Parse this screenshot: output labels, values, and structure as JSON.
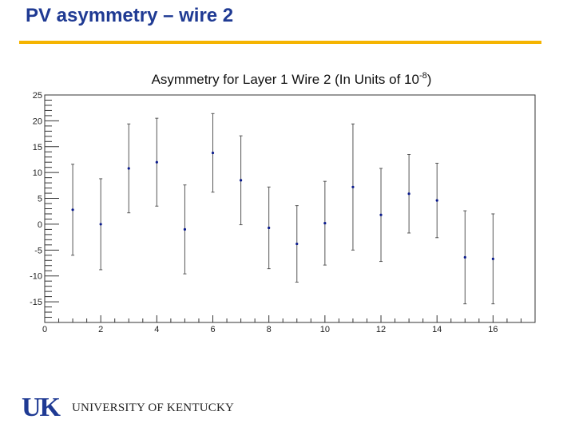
{
  "slide": {
    "title": "PV asymmetry – wire 2",
    "title_color": "#1f3a93",
    "rule_color": "#f5b400"
  },
  "footer": {
    "logo_text": "UK",
    "logo_color": "#1f3a93",
    "institution": "UNIVERSITY OF KENTUCKY"
  },
  "chart_data": {
    "type": "scatter",
    "title_main": "Asymmetry for Layer 1 Wire 2 (In Units of 10",
    "title_sup": "-8",
    "title_end": ")",
    "xlabel": "",
    "ylabel": "",
    "xlim": [
      0,
      17.5
    ],
    "ylim": [
      -19,
      25
    ],
    "x_ticks": [
      "0",
      "2",
      "4",
      "6",
      "8",
      "10",
      "12",
      "14",
      "16"
    ],
    "y_ticks": [
      "-15",
      "-10",
      "-5",
      "0",
      "5",
      "10",
      "15",
      "20",
      "25"
    ],
    "grid": false,
    "legend": "none",
    "marker_color": "#0a1a8c",
    "errorbar_color": "#555555",
    "series": [
      {
        "x": [
          1,
          2,
          3,
          4,
          5,
          6,
          7,
          8,
          9,
          10,
          11,
          12,
          13,
          14,
          15,
          16
        ],
        "y": [
          2.8,
          0.0,
          10.8,
          12.0,
          -1.0,
          13.8,
          8.5,
          -0.7,
          -3.8,
          0.2,
          7.2,
          1.8,
          5.9,
          4.6,
          -6.4,
          -6.7
        ],
        "err": [
          8.8,
          8.8,
          8.6,
          8.5,
          8.6,
          7.6,
          8.6,
          7.9,
          7.4,
          8.1,
          12.2,
          9.0,
          7.6,
          7.2,
          9.0,
          8.7
        ]
      }
    ]
  }
}
